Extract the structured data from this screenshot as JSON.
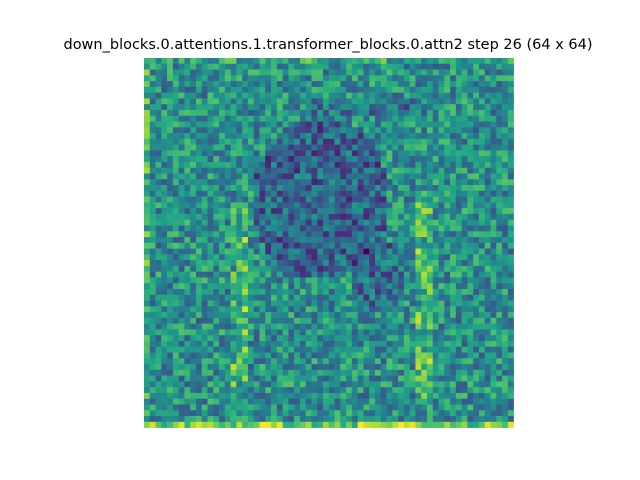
{
  "chart_data": {
    "type": "heatmap",
    "title": "down_blocks.0.attentions.1.transformer_blocks.0.attn2 step 26 (64 x 64)",
    "rows": 64,
    "cols": 64,
    "value_range": [
      0,
      1
    ],
    "colormap": "viridis",
    "axes_visible": false,
    "legend": "none",
    "values_note": "per-cell attention intensities, approximated; mostly mid-range noise with a darker region near the upper-center and brighter vertical streaks near the left-center and right-center, bright bottom edge",
    "seed": 26
  },
  "colors": {
    "viridis_low": "#440154",
    "viridis_mid": "#21918c",
    "viridis_high": "#fde725"
  }
}
